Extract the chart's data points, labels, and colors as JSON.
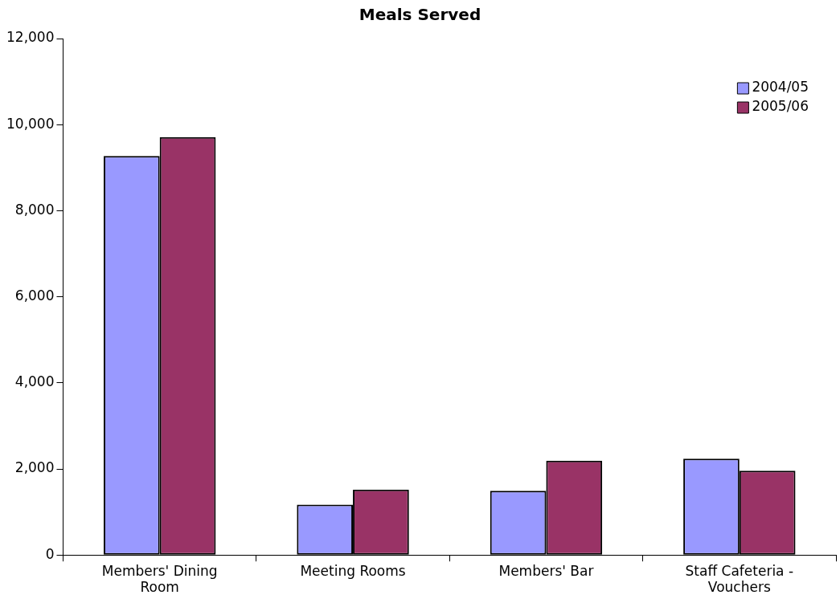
{
  "chart_data": {
    "type": "bar",
    "title": "Meals Served",
    "categories": [
      "Members' Dining Room",
      "Meeting Rooms",
      "Members' Bar",
      "Staff Cafeteria - Vouchers"
    ],
    "series": [
      {
        "name": "2004/05",
        "color": "#9999ff",
        "values": [
          9270,
          1170,
          1490,
          2240
        ]
      },
      {
        "name": "2005/06",
        "color": "#993366",
        "values": [
          9710,
          1520,
          2190,
          1960
        ]
      }
    ],
    "ylim": [
      0,
      12000
    ],
    "yticks": [
      {
        "value": 0,
        "label": "0"
      },
      {
        "value": 2000,
        "label": "2,000"
      },
      {
        "value": 4000,
        "label": "4,000"
      },
      {
        "value": 6000,
        "label": "6,000"
      },
      {
        "value": 8000,
        "label": "8,000"
      },
      {
        "value": 10000,
        "label": "10,000"
      },
      {
        "value": 12000,
        "label": "12,000"
      }
    ],
    "grid": false,
    "legend": "top right"
  }
}
